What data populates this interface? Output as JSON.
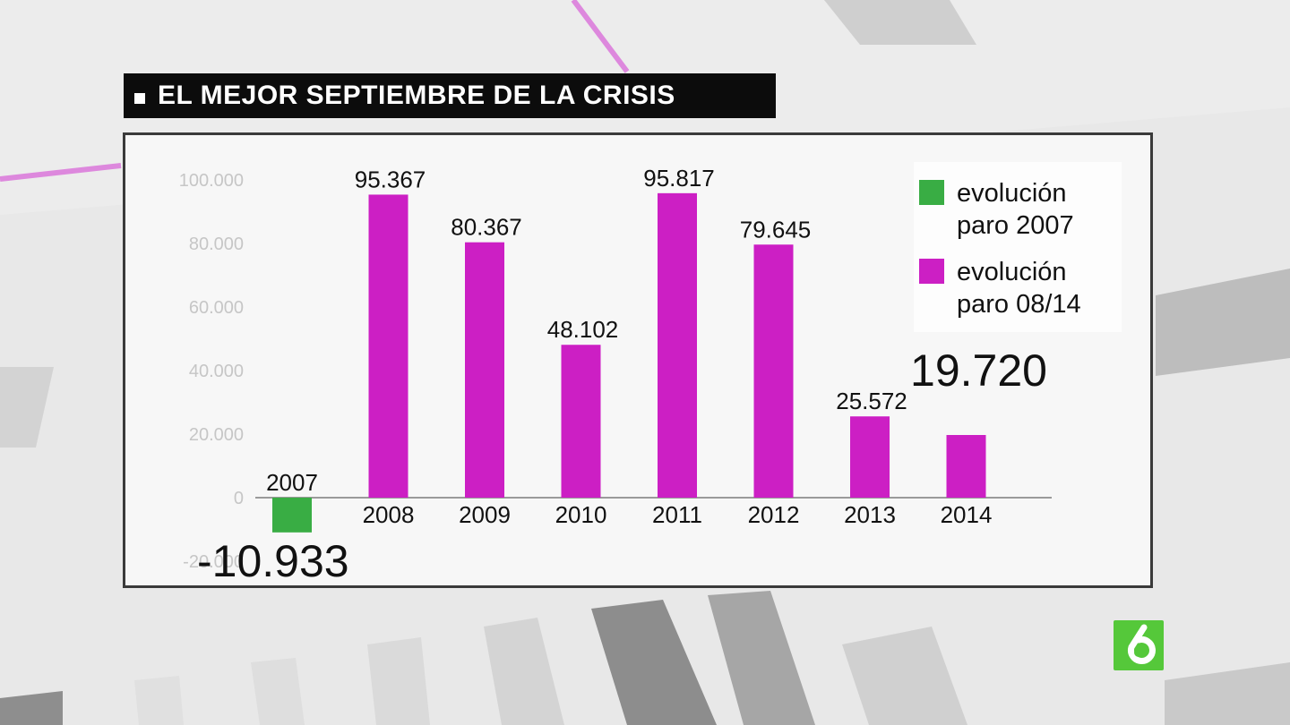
{
  "title": "EL MEJOR SEPTIEMBRE DE LA CRISIS",
  "colors": {
    "green": "#39ad44",
    "magenta": "#cc1fc4",
    "axis": "#9a9a9a",
    "tick": "#c6c6c6"
  },
  "chart_data": {
    "type": "bar",
    "categories": [
      "2007",
      "2008",
      "2009",
      "2010",
      "2011",
      "2012",
      "2013",
      "2014"
    ],
    "values": [
      -10933,
      95367,
      80367,
      48102,
      95817,
      79645,
      25572,
      19720
    ],
    "value_labels": [
      "-10.933",
      "95.367",
      "80.367",
      "48.102",
      "95.817",
      "79.645",
      "25.572",
      "19.720"
    ],
    "series_colors": [
      "green",
      "magenta",
      "magenta",
      "magenta",
      "magenta",
      "magenta",
      "magenta",
      "magenta"
    ],
    "ylim": [
      -20000,
      100000
    ],
    "yticks": [
      100000,
      80000,
      60000,
      40000,
      20000,
      0,
      -20000
    ],
    "ytick_labels": [
      "100.000",
      "80.000",
      "60.000",
      "40.000",
      "20.000",
      "0",
      "-20.000"
    ],
    "legend": [
      {
        "line1": "evolución",
        "line2": "paro 2007",
        "color": "green"
      },
      {
        "line1": "evolución",
        "line2": "paro 08/14",
        "color": "magenta"
      }
    ],
    "legend_position": "top-right",
    "grid": false
  },
  "logo_icon": "la-sexta-logo-icon"
}
